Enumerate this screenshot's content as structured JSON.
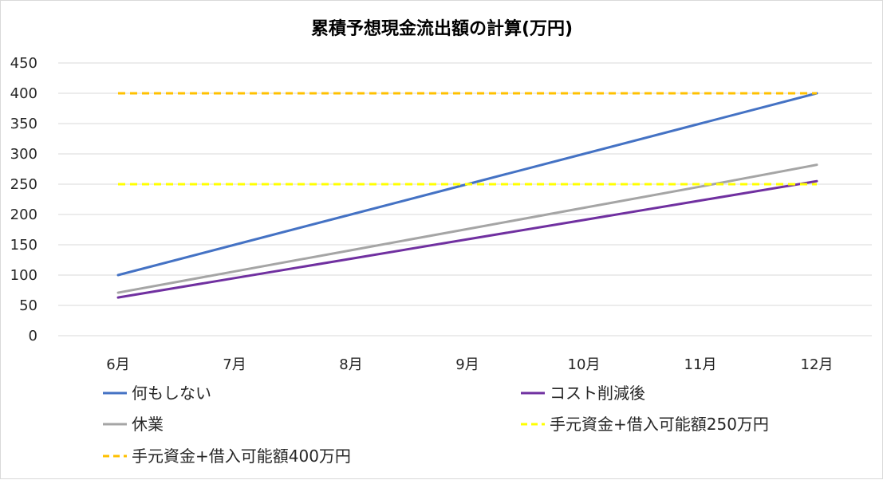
{
  "chart_data": {
    "type": "line",
    "title": "累積予想現金流出額の計算(万円)",
    "xlabel": "",
    "ylabel": "",
    "categories": [
      "6月",
      "7月",
      "8月",
      "9月",
      "10月",
      "11月",
      "12月"
    ],
    "ylim": [
      0,
      450
    ],
    "yticks": [
      0,
      50,
      100,
      150,
      200,
      250,
      300,
      350,
      400,
      450
    ],
    "grid": true,
    "legend_position": "bottom",
    "series": [
      {
        "name": "何もしない",
        "values": [
          100,
          150,
          200,
          250,
          300,
          350,
          400
        ],
        "color": "#4472c4",
        "style": "solid"
      },
      {
        "name": "コスト削減後",
        "values": [
          63,
          95,
          127,
          159,
          191,
          223,
          255
        ],
        "color": "#7030a0",
        "style": "solid"
      },
      {
        "name": "休業",
        "values": [
          71,
          106,
          141,
          176,
          211,
          246,
          282
        ],
        "color": "#a5a5a5",
        "style": "solid"
      },
      {
        "name": "手元資金+借入可能額250万円",
        "values": [
          250,
          250,
          250,
          250,
          250,
          250,
          250
        ],
        "color": "#ffff00",
        "style": "dashed"
      },
      {
        "name": "手元資金+借入可能額400万円",
        "values": [
          400,
          400,
          400,
          400,
          400,
          400,
          400
        ],
        "color": "#ffc000",
        "style": "dashed"
      }
    ],
    "legend_order": [
      0,
      1,
      2,
      3,
      4
    ]
  }
}
